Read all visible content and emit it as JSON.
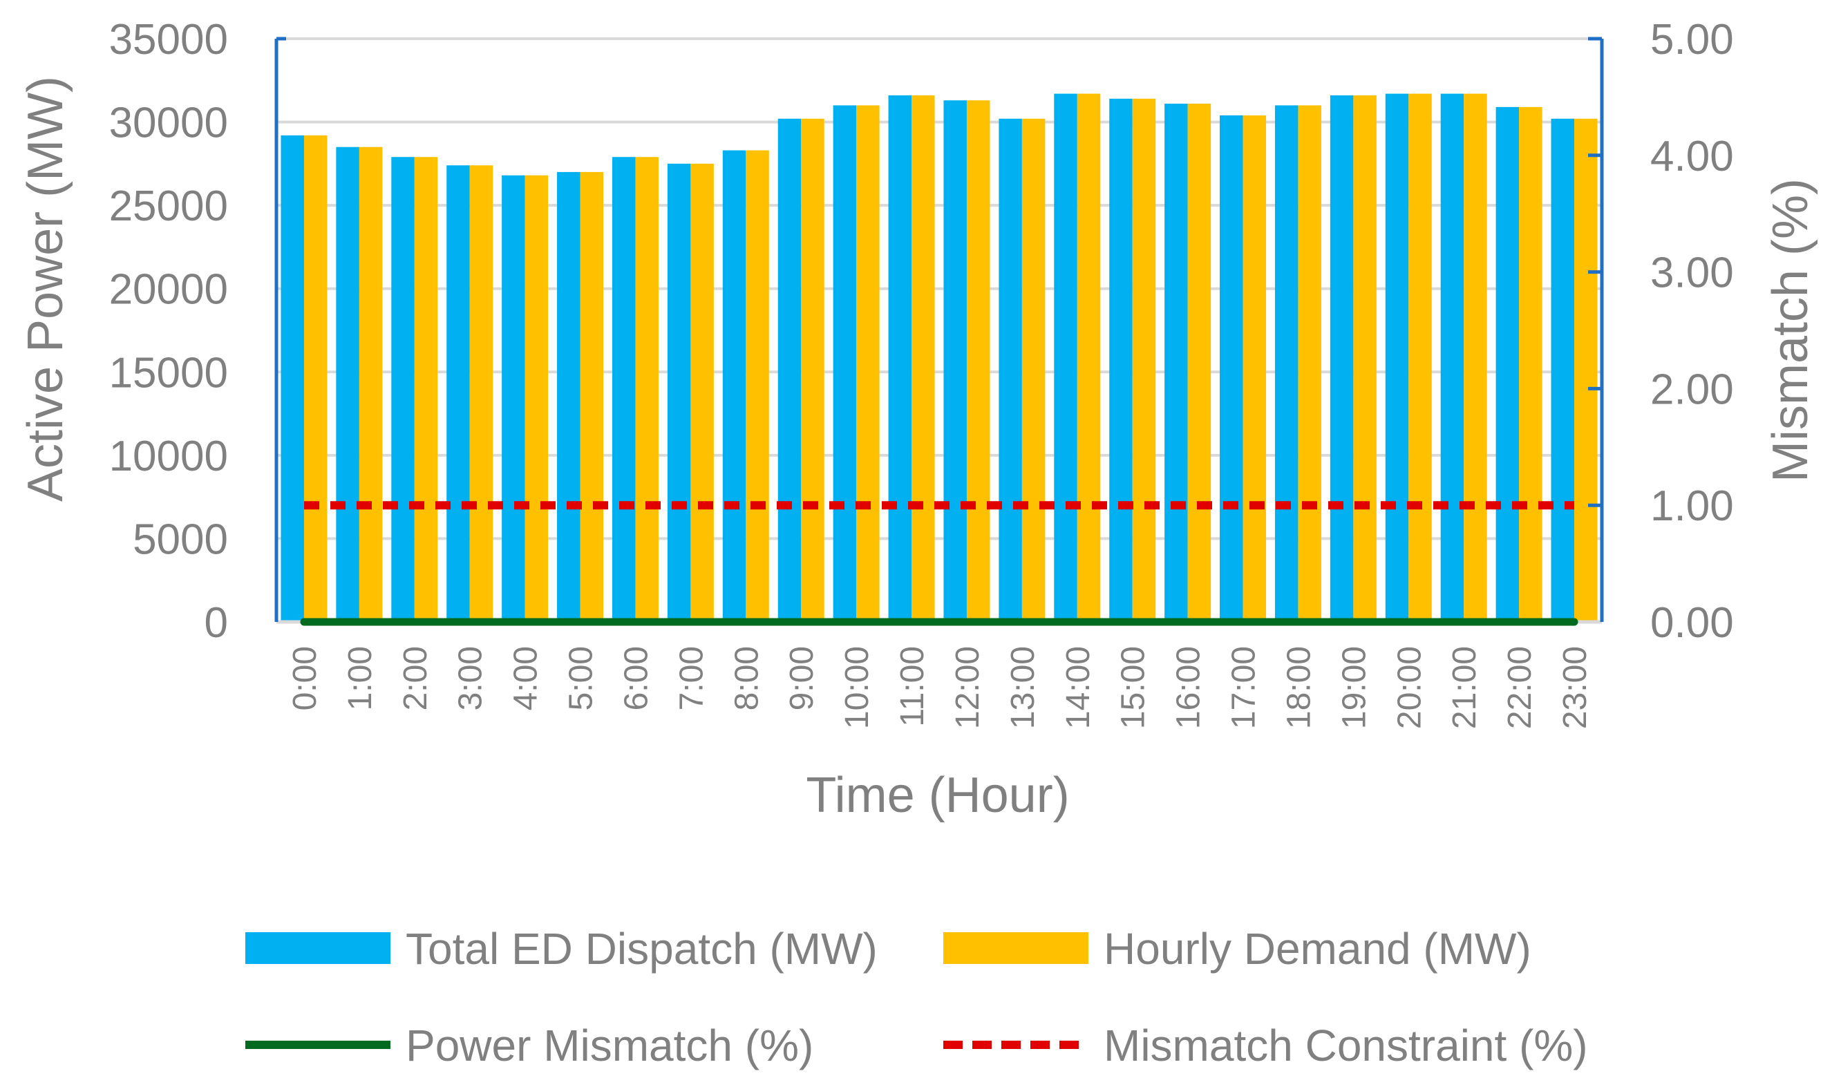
{
  "chart_data": {
    "type": "bar",
    "title": "",
    "xlabel": "Time (Hour)",
    "ylabel_left": "Active Power (MW)",
    "ylabel_right": "Mismatch (%)",
    "ylim_left": [
      0,
      35000
    ],
    "ylim_right": [
      0,
      5
    ],
    "yticks_left": [
      "0",
      "5000",
      "10000",
      "15000",
      "20000",
      "25000",
      "30000",
      "35000"
    ],
    "yticks_right": [
      "0.00",
      "1.00",
      "2.00",
      "3.00",
      "4.00",
      "5.00"
    ],
    "grid": true,
    "legend_position": "bottom",
    "categories": [
      "0:00",
      "1:00",
      "2:00",
      "3:00",
      "4:00",
      "5:00",
      "6:00",
      "7:00",
      "8:00",
      "9:00",
      "10:00",
      "11:00",
      "12:00",
      "13:00",
      "14:00",
      "15:00",
      "16:00",
      "17:00",
      "18:00",
      "19:00",
      "20:00",
      "21:00",
      "22:00",
      "23:00"
    ],
    "bar_series": [
      {
        "name": "Total ED Dispatch (MW)",
        "color": "#00B0F0",
        "axis": "left",
        "values": [
          29200,
          28500,
          27900,
          27400,
          26800,
          27000,
          27900,
          27500,
          28300,
          30200,
          31000,
          31600,
          31300,
          30200,
          31700,
          31400,
          31100,
          30400,
          31000,
          31600,
          31700,
          31700,
          30900,
          30200
        ]
      },
      {
        "name": "Hourly Demand (MW)",
        "color": "#FFC000",
        "axis": "left",
        "values": [
          29200,
          28500,
          27900,
          27400,
          26800,
          27000,
          27900,
          27500,
          28300,
          30200,
          31000,
          31600,
          31300,
          30200,
          31700,
          31400,
          31100,
          30400,
          31000,
          31600,
          31700,
          31700,
          30900,
          30200
        ]
      }
    ],
    "line_series": [
      {
        "name": "Power Mismatch (%)",
        "color": "#006B1E",
        "axis": "right",
        "style": "solid",
        "values": [
          0,
          0,
          0,
          0,
          0,
          0,
          0,
          0,
          0,
          0,
          0,
          0,
          0,
          0,
          0,
          0,
          0,
          0,
          0,
          0,
          0,
          0,
          0,
          0
        ]
      },
      {
        "name": "Mismatch Constraint (%)",
        "color": "#E00000",
        "axis": "right",
        "style": "dashed",
        "values": [
          1,
          1,
          1,
          1,
          1,
          1,
          1,
          1,
          1,
          1,
          1,
          1,
          1,
          1,
          1,
          1,
          1,
          1,
          1,
          1,
          1,
          1,
          1,
          1
        ]
      }
    ]
  }
}
